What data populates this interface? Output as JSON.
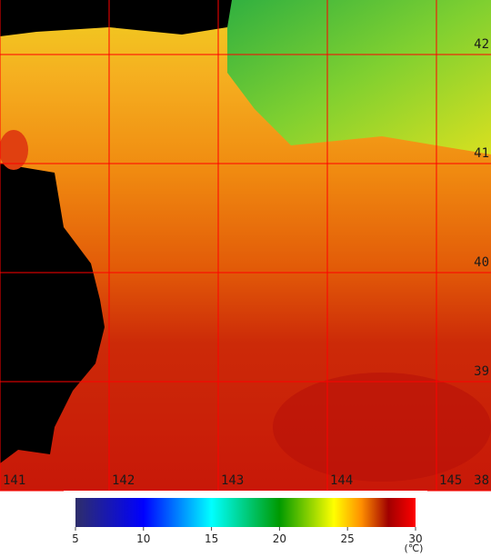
{
  "map": {
    "lat_labels": [
      42,
      41,
      40,
      39,
      38
    ],
    "lon_labels": [
      141,
      142,
      143,
      144,
      145
    ]
  },
  "colorbar": {
    "range": [
      5,
      30
    ],
    "ticks": [
      5,
      10,
      15,
      20,
      25,
      30
    ],
    "unit": "(℃)"
  }
}
